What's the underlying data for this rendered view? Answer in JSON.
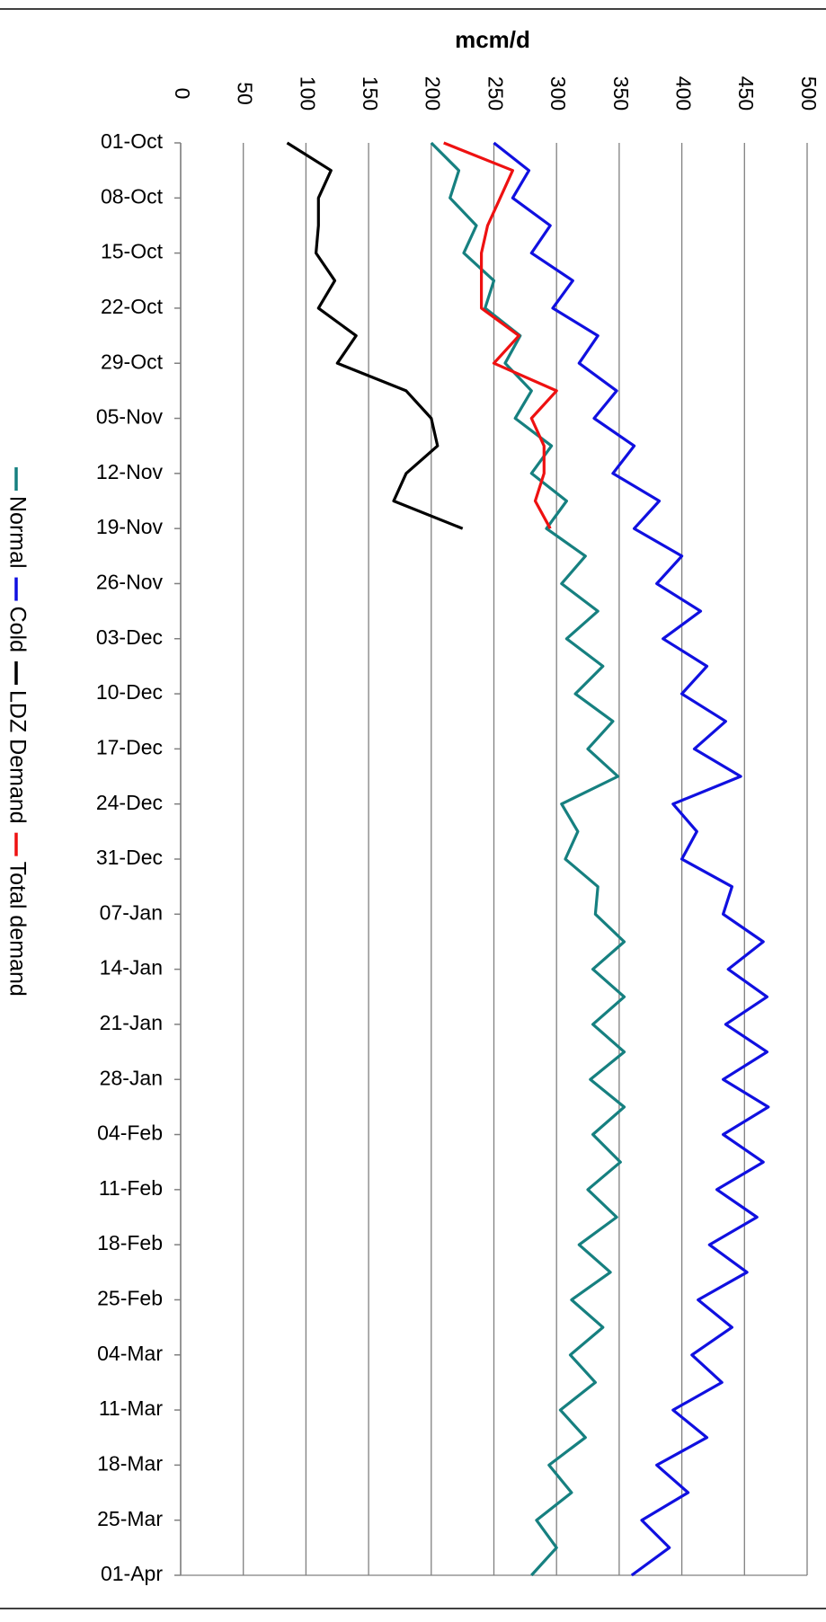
{
  "chart_data": {
    "type": "line",
    "title": "mcm/d",
    "categories": [
      "01-Oct",
      null,
      "08-Oct",
      null,
      "15-Oct",
      null,
      "22-Oct",
      null,
      "29-Oct",
      null,
      "05-Nov",
      null,
      "12-Nov",
      null,
      "19-Nov",
      null,
      "26-Nov",
      null,
      "03-Dec",
      null,
      "10-Dec",
      null,
      "17-Dec",
      null,
      "24-Dec",
      null,
      "31-Dec",
      null,
      "07-Jan",
      null,
      "14-Jan",
      null,
      "21-Jan",
      null,
      "28-Jan",
      null,
      "04-Feb",
      null,
      "11-Feb",
      null,
      "18-Feb",
      null,
      "25-Feb",
      null,
      "04-Mar",
      null,
      "11-Mar",
      null,
      "18-Mar",
      null,
      "25-Mar",
      null,
      "01-Apr"
    ],
    "series": [
      {
        "name": "Normal",
        "color": "#168080",
        "values": [
          200,
          222,
          215,
          236,
          226,
          250,
          243,
          271,
          259,
          280,
          267,
          296,
          280,
          308,
          292,
          323,
          304,
          333,
          308,
          337,
          315,
          345,
          325,
          349,
          304,
          317,
          307,
          333,
          331,
          354,
          329,
          354,
          329,
          354,
          327,
          354,
          329,
          351,
          325,
          348,
          318,
          343,
          312,
          337,
          311,
          331,
          303,
          323,
          294,
          312,
          284,
          300,
          280
        ]
      },
      {
        "name": "Cold",
        "color": "#1010e0",
        "values": [
          250,
          278,
          265,
          295,
          280,
          313,
          297,
          333,
          318,
          348,
          330,
          362,
          345,
          382,
          362,
          400,
          380,
          415,
          385,
          420,
          400,
          435,
          410,
          447,
          393,
          412,
          400,
          440,
          433,
          465,
          437,
          468,
          435,
          468,
          433,
          469,
          433,
          465,
          428,
          460,
          422,
          452,
          413,
          440,
          408,
          432,
          393,
          420,
          380,
          405,
          368,
          390,
          360
        ]
      },
      {
        "name": "LDZ Demand",
        "color": "#000000",
        "values": [
          85,
          120,
          110,
          110,
          108,
          123,
          110,
          140,
          125,
          180,
          200,
          205,
          180,
          170,
          225,
          null,
          null,
          null,
          null,
          null,
          null,
          null,
          null,
          null,
          null,
          null,
          null,
          null,
          null,
          null,
          null,
          null,
          null,
          null,
          null,
          null,
          null,
          null,
          null,
          null,
          null,
          null,
          null,
          null,
          null,
          null,
          null,
          null,
          null,
          null,
          null,
          null,
          null
        ]
      },
      {
        "name": "Total demand",
        "color": "#ee1111",
        "values": [
          210,
          265,
          255,
          245,
          240,
          240,
          240,
          270,
          250,
          300,
          280,
          290,
          290,
          283,
          295,
          null,
          null,
          null,
          null,
          null,
          null,
          null,
          null,
          null,
          null,
          null,
          null,
          null,
          null,
          null,
          null,
          null,
          null,
          null,
          null,
          null,
          null,
          null,
          null,
          null,
          null,
          null,
          null,
          null,
          null,
          null,
          null,
          null,
          null,
          null,
          null,
          null,
          null
        ]
      }
    ],
    "ylim": [
      0,
      500
    ],
    "yticks": [
      0,
      50,
      100,
      150,
      200,
      250,
      300,
      350,
      400,
      450,
      500
    ],
    "grid": true
  }
}
